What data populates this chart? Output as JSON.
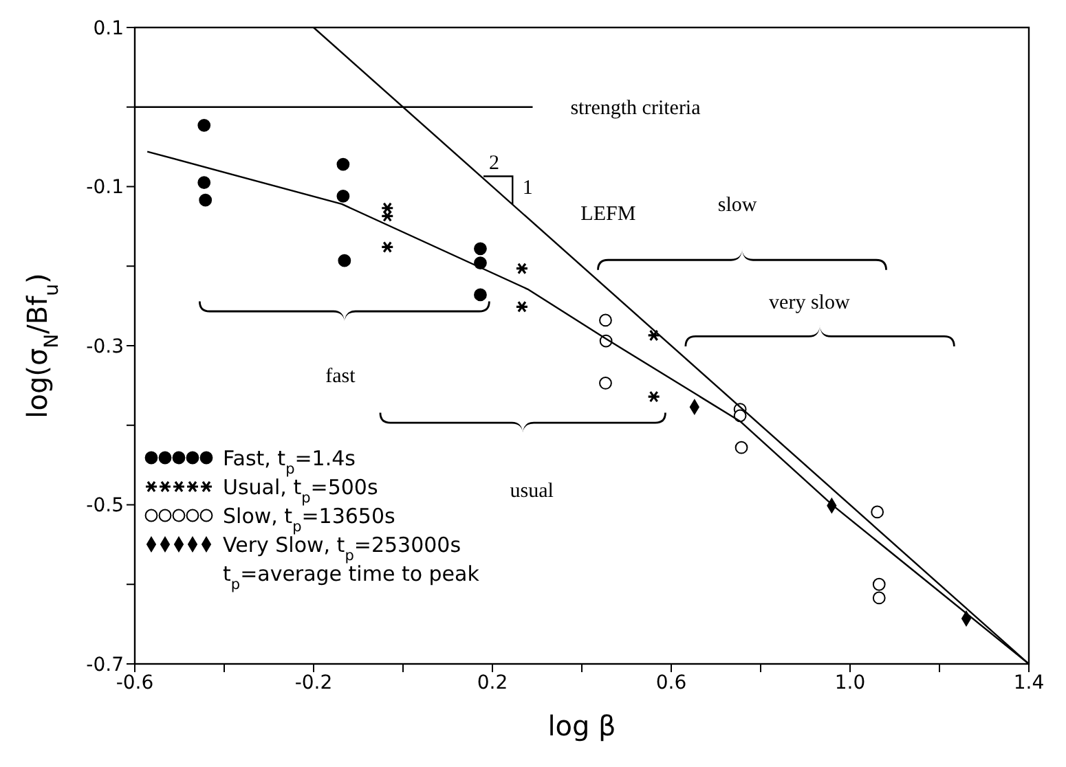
{
  "chart_data": {
    "type": "scatter",
    "xlabel": "log β",
    "ylabel": "log(σ$_{N}$/Bf$_{u}$)",
    "xlim": [
      -0.6,
      1.4
    ],
    "ylim": [
      -0.7,
      0.1
    ],
    "xticks": [
      -0.6,
      {
        "value": -0.4,
        "label": null
      },
      -0.2,
      {
        "value": 0,
        "label": null
      },
      0.2,
      {
        "value": 0.4,
        "label": null
      },
      0.6,
      {
        "value": 0.8,
        "label": null
      },
      {
        "value": 1,
        "label": "1.0"
      },
      {
        "value": 1.2,
        "label": null
      },
      1.4
    ],
    "yticks": [
      -0.7,
      {
        "value": -0.6,
        "label": null
      },
      -0.5,
      {
        "value": -0.4,
        "label": null
      },
      -0.3,
      {
        "value": -0.2,
        "label": null
      },
      -0.1,
      {
        "value": 0,
        "label": null
      },
      0.1
    ],
    "grid": false,
    "legend": "bottom left",
    "series": [
      {
        "name": "Fast, t$_{p}$=1.4s",
        "color": "#000000",
        "marker": "circle",
        "x": [
          -0.445,
          -0.445,
          -0.442,
          -0.134,
          -0.134,
          -0.131,
          0.173,
          0.173,
          0.173
        ],
        "values": [
          -0.023,
          -0.095,
          -0.117,
          -0.072,
          -0.112,
          -0.193,
          -0.178,
          -0.196,
          -0.236
        ]
      },
      {
        "name": "Usual, t$_{p}$=500s",
        "color": "#000000",
        "marker": "cross",
        "x": [
          -0.035,
          -0.035,
          -0.035,
          0.266,
          0.266,
          0.561,
          0.561
        ],
        "values": [
          -0.127,
          -0.137,
          -0.176,
          -0.203,
          -0.251,
          -0.287,
          -0.364
        ]
      },
      {
        "name": "Slow, t$_{p}$=13650s",
        "color": "#000000",
        "marker": "circle",
        "x": [
          0.453,
          0.454,
          0.453,
          0.754,
          0.754,
          0.757,
          1.061,
          1.065,
          1.065
        ],
        "values": [
          -0.268,
          -0.294,
          -0.347,
          -0.38,
          -0.388,
          -0.428,
          -0.509,
          -0.6,
          -0.617
        ]
      },
      {
        "name": "Very Slow, t$_{p}$=253000s",
        "color": "#000000",
        "marker": "diamond",
        "x": [
          0.652,
          0.959,
          1.26
        ],
        "values": [
          -0.377,
          -0.501,
          -0.643
        ]
      },
      {
        "type": "line",
        "color": "#000000",
        "marker": "none",
        "x": [
          -0.6,
          0.29
        ],
        "values": [
          0,
          0
        ]
      },
      {
        "type": "line",
        "color": "#000000",
        "marker": "none",
        "x": [
          -0.2,
          1.4
        ],
        "values": [
          0.1,
          -0.7
        ]
      },
      {
        "type": "line",
        "color": "#000000",
        "marker": "none",
        "x": [
          -0.572,
          -0.137,
          0.279,
          0.453,
          0.754,
          0.962,
          1.4
        ],
        "values": [
          -0.056,
          -0.122,
          -0.229,
          -0.291,
          -0.395,
          -0.501,
          -0.7
        ]
      }
    ],
    "annotations": [
      "strength criteria",
      "2",
      "1",
      "LEFM",
      "slow",
      "very slow",
      "fast",
      "usual",
      "t$_{p}$=average time to peak"
    ]
  }
}
